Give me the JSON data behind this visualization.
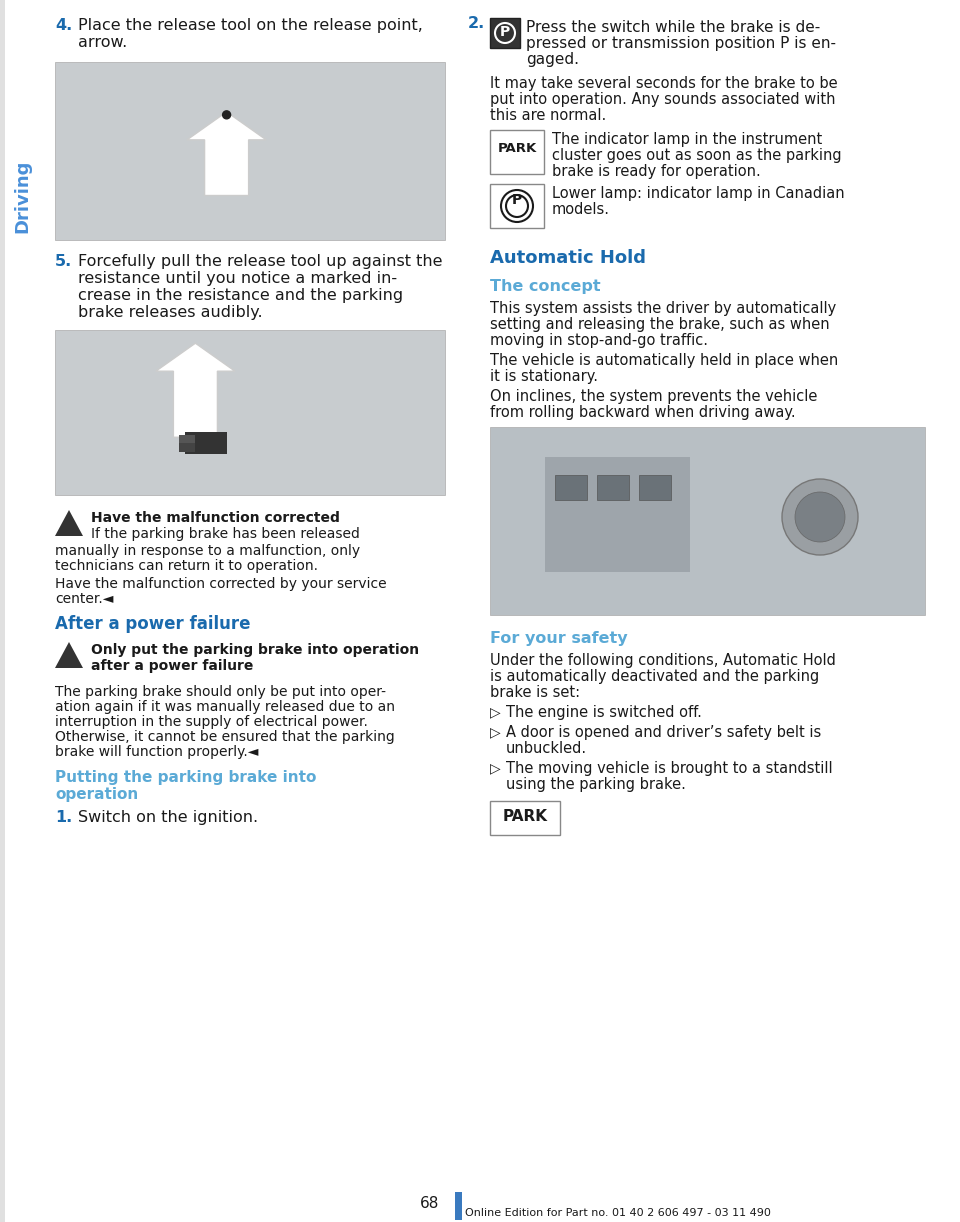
{
  "page_bg": "#ffffff",
  "page_number": "68",
  "footer_text": "Online Edition for Part no. 01 40 2 606 497 - 03 11 490",
  "sidebar_text": "Driving",
  "sidebar_color": "#4a90d9",
  "blue_heading_color": "#1a6aad",
  "light_blue_subheading_color": "#5baad6",
  "black_text_color": "#1a1a1a",
  "step4_num": "4.",
  "step4_text_line1": "Place the release tool on the release point,",
  "step4_text_line2": "arrow.",
  "step5_num": "5.",
  "step5_text_line1": "Forcefully pull the release tool up against the",
  "step5_text_line2": "resistance until you notice a marked in-",
  "step5_text_line3": "crease in the resistance and the parking",
  "step5_text_line4": "brake releases audibly.",
  "warn1_title": "Have the malfunction corrected",
  "warn1_line1": "If the parking brake has been released",
  "warn1_line2": "manually in response to a malfunction, only",
  "warn1_line3": "technicians can return it to operation.",
  "warn1_line4": "Have the malfunction corrected by your service",
  "warn1_line5": "center.◄",
  "apf_heading": "After a power failure",
  "warn2_line1": "Only put the parking brake into operation",
  "warn2_line2": "after a power failure",
  "pf_line1": "The parking brake should only be put into oper-",
  "pf_line2": "ation again if it was manually released due to an",
  "pf_line3": "interruption in the supply of electrical power.",
  "pf_line4": "Otherwise, it cannot be ensured that the parking",
  "pf_line5": "brake will function properly.◄",
  "putting_line1": "Putting the parking brake into",
  "putting_line2": "operation",
  "step1_num": "1.",
  "step1_text": "Switch on the ignition.",
  "r_step2_num": "2.",
  "r_step2_line1": "Press the switch while the brake is de-",
  "r_step2_line2": "pressed or transmission position P is en-",
  "r_step2_line3": "gaged.",
  "r_para1_line1": "It may take several seconds for the brake to be",
  "r_para1_line2": "put into operation. Any sounds associated with",
  "r_para1_line3": "this are normal.",
  "park1_text": "The indicator lamp in the instrument",
  "park1_line2": "cluster goes out as soon as the parking",
  "park1_line3": "brake is ready for operation.",
  "park2_text": "Lower lamp: indicator lamp in Canadian",
  "park2_line2": "models.",
  "ah_heading": "Automatic Hold",
  "concept_heading": "The concept",
  "concept_line1": "This system assists the driver by automatically",
  "concept_line2": "setting and releasing the brake, such as when",
  "concept_line3": "moving in stop-and-go traffic.",
  "concept_line4": "The vehicle is automatically held in place when",
  "concept_line5": "it is stationary.",
  "concept_line6": "On inclines, the system prevents the vehicle",
  "concept_line7": "from rolling backward when driving away.",
  "safety_heading": "For your safety",
  "safety_intro1": "Under the following conditions, Automatic Hold",
  "safety_intro2": "is automatically deactivated and the parking",
  "safety_intro3": "brake is set:",
  "bullet1": "The engine is switched off.",
  "bullet2a": "A door is opened and driver’s safety belt is",
  "bullet2b": "unbuckled.",
  "bullet3a": "The moving vehicle is brought to a standstill",
  "bullet3b": "using the parking brake.",
  "img_gray": "#c8cccf",
  "img_gray2": "#b8bfc4",
  "warn_icon_color": "#333333",
  "page_bar_color": "#3a7abf"
}
